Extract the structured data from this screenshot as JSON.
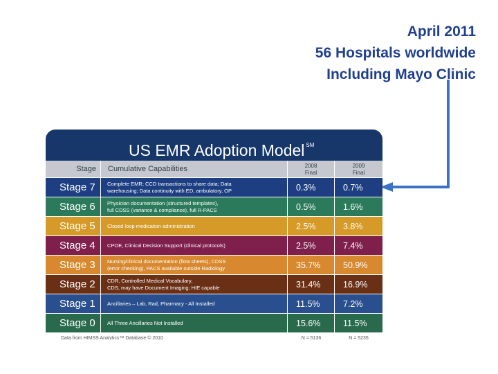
{
  "callout": {
    "lines": [
      "April 2011",
      "56 Hospitals worldwide",
      "Including Mayo Clinic"
    ]
  },
  "colors": {
    "callout_text": "#1f3f8f",
    "arrow": "#3a72c4",
    "title_band": "#17376b"
  },
  "table": {
    "title": "US EMR Adoption Model",
    "title_mark": "SM",
    "headers": {
      "stage": "Stage",
      "capabilities": "Cumulative Capabilities",
      "col1_year": "2008",
      "col1_sub": "Final",
      "col2_year": "2009",
      "col2_sub": "Final"
    },
    "rows": [
      {
        "stage": "Stage 7",
        "capabilities": [
          "Complete EMR; CCD transactions to share data; Data",
          "warehousing; Data continuity with ED, ambulatory, OP"
        ],
        "col1": "0.3%",
        "col2": "0.7%",
        "color": "#1d3f82"
      },
      {
        "stage": "Stage 6",
        "capabilities": [
          "Physician documentation (structured templates),",
          "full CDSS (variance & compliance), full R-PACS"
        ],
        "col1": "0.5%",
        "col2": "1.6%",
        "color": "#2b7a5b"
      },
      {
        "stage": "Stage 5",
        "capabilities": [
          "Closed loop medication administration"
        ],
        "col1": "2.5%",
        "col2": "3.8%",
        "color": "#d59a27"
      },
      {
        "stage": "Stage 4",
        "capabilities": [
          "CPOE, Clinical Decision Support (clinical protocols)"
        ],
        "col1": "2.5%",
        "col2": "7.4%",
        "color": "#7e1f4c"
      },
      {
        "stage": "Stage 3",
        "capabilities": [
          "Nursing/clinical documentation (flow sheets), CDSS",
          "(error checking), PACS available outside Radiology"
        ],
        "col1": "35.7%",
        "col2": "50.9%",
        "color": "#d8892f"
      },
      {
        "stage": "Stage 2",
        "capabilities": [
          "CDR, Controlled Medical Vocabulary,",
          "CDS, may have Document Imaging; HIE capable"
        ],
        "col1": "31.4%",
        "col2": "16.9%",
        "color": "#6a3016"
      },
      {
        "stage": "Stage 1",
        "capabilities": [
          "Ancillaries – Lab, Rad, Pharmacy - All Installed"
        ],
        "col1": "11.5%",
        "col2": "7.2%",
        "color": "#2a4f8e"
      },
      {
        "stage": "Stage 0",
        "capabilities": [
          "All Three Ancillaries Not Installed"
        ],
        "col1": "15.6%",
        "col2": "11.5%",
        "color": "#2a6a4c"
      }
    ],
    "footer": {
      "source": "Data from HIMSS Analytics™ Database © 2010",
      "n1": "N = 5136",
      "n2": "N = 5235"
    }
  }
}
